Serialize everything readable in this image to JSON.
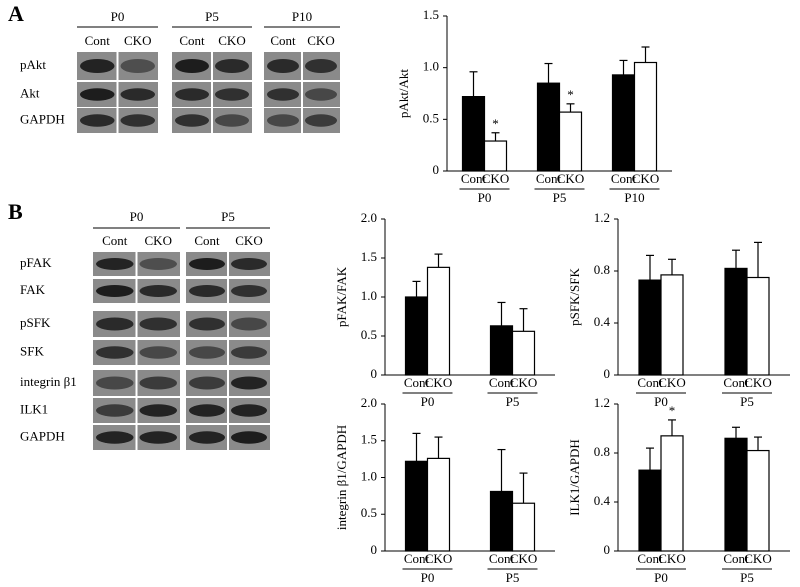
{
  "blots": [
    {
      "panel": "A",
      "groups": [
        "P0",
        "P5",
        "P10"
      ],
      "lanes": [
        "Cont",
        "CKO"
      ],
      "rows": [
        "pAkt",
        "Akt",
        "GAPDH"
      ]
    },
    {
      "panel": "B",
      "groups": [
        "P0",
        "P5"
      ],
      "lanes": [
        "Cont",
        "CKO"
      ],
      "rows": [
        "pFAK",
        "FAK",
        "pSFK",
        "SFK",
        "integrin β1",
        "ILK1",
        "GAPDH"
      ]
    }
  ],
  "chart_data": [
    {
      "type": "bar",
      "ylabel": "pAkt/Akt",
      "categories": [
        "P0",
        "P5",
        "P10"
      ],
      "ylim": [
        0,
        1.5
      ],
      "yticks": [
        0,
        0.5,
        {
          "value": 1,
          "label": "1.0"
        },
        1.5
      ],
      "series": [
        {
          "name": "Cont",
          "color": "#000000",
          "values": [
            0.72,
            0.85,
            0.93
          ],
          "errors": [
            0.24,
            0.19,
            0.14
          ]
        },
        {
          "name": "CKO",
          "color": "#ffffff",
          "values": [
            0.29,
            0.57,
            1.05
          ],
          "errors": [
            0.08,
            0.08,
            0.15
          ],
          "significance": [
            "*",
            "*",
            null
          ]
        }
      ]
    },
    {
      "type": "bar",
      "ylabel": "pFAK/FAK",
      "categories": [
        "P0",
        "P5"
      ],
      "ylim": [
        0,
        2
      ],
      "yticks": [
        0,
        0.5,
        {
          "value": 1,
          "label": "1.0"
        },
        1.5,
        {
          "value": 2,
          "label": "2.0"
        }
      ],
      "series": [
        {
          "name": "Cont",
          "color": "#000000",
          "values": [
            1.0,
            0.63
          ],
          "errors": [
            0.2,
            0.3
          ]
        },
        {
          "name": "CKO",
          "color": "#ffffff",
          "values": [
            1.38,
            0.56
          ],
          "errors": [
            0.17,
            0.29
          ]
        }
      ]
    },
    {
      "type": "bar",
      "ylabel": "pSFK/SFK",
      "categories": [
        "P0",
        "P5"
      ],
      "ylim": [
        0,
        1.2
      ],
      "yticks": [
        0,
        0.4,
        0.8,
        1.2
      ],
      "series": [
        {
          "name": "Cont",
          "color": "#000000",
          "values": [
            0.73,
            0.82
          ],
          "errors": [
            0.19,
            0.14
          ]
        },
        {
          "name": "CKO",
          "color": "#ffffff",
          "values": [
            0.77,
            0.75
          ],
          "errors": [
            0.12,
            0.27
          ]
        }
      ]
    },
    {
      "type": "bar",
      "ylabel": "integrin β1/GAPDH",
      "categories": [
        "P0",
        "P5"
      ],
      "ylim": [
        0,
        2
      ],
      "yticks": [
        0,
        0.5,
        {
          "value": 1,
          "label": "1.0"
        },
        1.5,
        {
          "value": 2,
          "label": "2.0"
        }
      ],
      "series": [
        {
          "name": "Cont",
          "color": "#000000",
          "values": [
            1.22,
            0.81
          ],
          "errors": [
            0.38,
            0.57
          ]
        },
        {
          "name": "CKO",
          "color": "#ffffff",
          "values": [
            1.26,
            0.65
          ],
          "errors": [
            0.29,
            0.41
          ]
        }
      ]
    },
    {
      "type": "bar",
      "ylabel": "ILK1/GAPDH",
      "categories": [
        "P0",
        "P5"
      ],
      "ylim": [
        0,
        1.2
      ],
      "yticks": [
        0,
        0.4,
        0.8,
        1.2
      ],
      "series": [
        {
          "name": "Cont",
          "color": "#000000",
          "values": [
            0.66,
            0.92
          ],
          "errors": [
            0.18,
            0.09
          ]
        },
        {
          "name": "CKO",
          "color": "#ffffff",
          "values": [
            0.94,
            0.82
          ],
          "errors": [
            0.13,
            0.11
          ],
          "significance": [
            "*",
            null
          ]
        }
      ]
    }
  ]
}
